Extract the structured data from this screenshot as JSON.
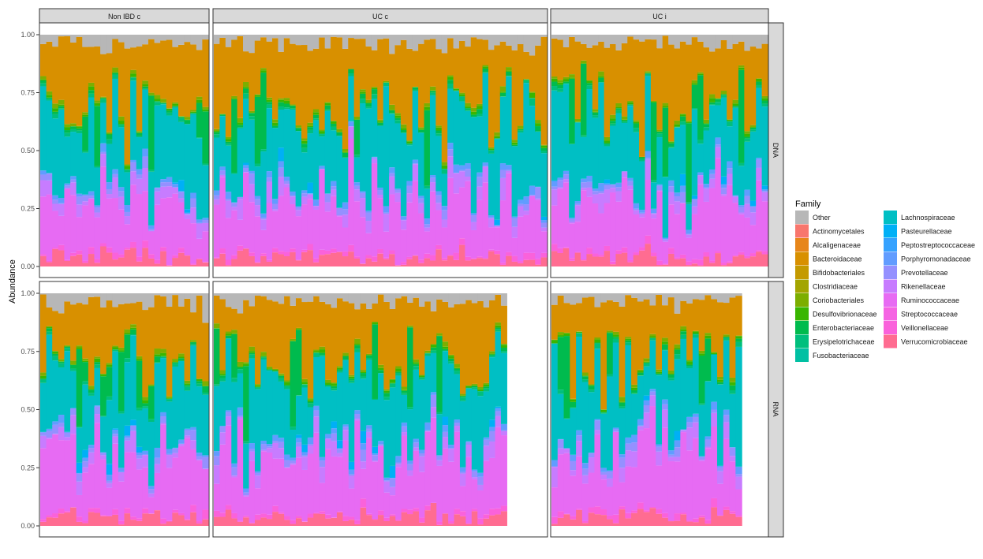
{
  "chart_data": {
    "type": "bar",
    "subtype": "stacked-100-percent",
    "ylabel": "Abundance",
    "yticks": [
      "0.00",
      "0.25",
      "0.50",
      "0.75",
      "1.00"
    ],
    "ylim": [
      0,
      1
    ],
    "facet_columns": [
      "Non IBD c",
      "UC c",
      "UC i"
    ],
    "facet_rows": [
      "DNA",
      "RNA"
    ],
    "legend": {
      "title": "Family",
      "position": "right",
      "entries": [
        {
          "name": "Other",
          "color": "#b7b7b7"
        },
        {
          "name": "Actinomycetales",
          "color": "#f8766d"
        },
        {
          "name": "Alcaligenaceae",
          "color": "#e7861a"
        },
        {
          "name": "Bacteroidaceae",
          "color": "#d89000"
        },
        {
          "name": "Bifidobacteriales",
          "color": "#c49a00"
        },
        {
          "name": "Clostridiaceae",
          "color": "#a3a500"
        },
        {
          "name": "Coriobacteriales",
          "color": "#7cae00"
        },
        {
          "name": "Desulfovibrionaceae",
          "color": "#39b600"
        },
        {
          "name": "Enterobacteriaceae",
          "color": "#00bb4e"
        },
        {
          "name": "Erysipelotrichaceae",
          "color": "#00bf7d"
        },
        {
          "name": "Fusobacteriaceae",
          "color": "#00c0a3"
        },
        {
          "name": "Lachnospiraceae",
          "color": "#00bfc4"
        },
        {
          "name": "Pasteurellaceae",
          "color": "#00b0f6"
        },
        {
          "name": "Peptostreptococcaceae",
          "color": "#35a2ff"
        },
        {
          "name": "Porphyromonadaceae",
          "color": "#619cff"
        },
        {
          "name": "Prevotellaceae",
          "color": "#9590ff"
        },
        {
          "name": "Rikenellaceae",
          "color": "#c77cff"
        },
        {
          "name": "Ruminococcaceae",
          "color": "#e76bf3"
        },
        {
          "name": "Streptococcaceae",
          "color": "#f564e3"
        },
        {
          "name": "Veillonellaceae",
          "color": "#fa62db"
        },
        {
          "name": "Verrucomicrobiaceae",
          "color": "#ff6c91"
        }
      ]
    },
    "panel_sample_counts": {
      "dna": [
        28,
        57,
        37
      ],
      "rna": [
        28,
        50,
        31
      ]
    },
    "typical_sample_composition": {
      "Verrucomicrobiaceae": 0.02,
      "Veillonellaceae": 0.02,
      "Ruminococcaceae": 0.24,
      "Rikenellaceae": 0.04,
      "Prevotellaceae": 0.02,
      "Porphyromonadaceae": 0.02,
      "Lachnospiraceae": 0.3,
      "Erysipelotrichaceae": 0.01,
      "Enterobacteriaceae": 0.02,
      "Bacteroidaceae": 0.28,
      "Other": 0.03
    },
    "x_tick_labels_note": "Per-sample IDs printed vertically below bottom panels (illegible at source resolution)"
  }
}
